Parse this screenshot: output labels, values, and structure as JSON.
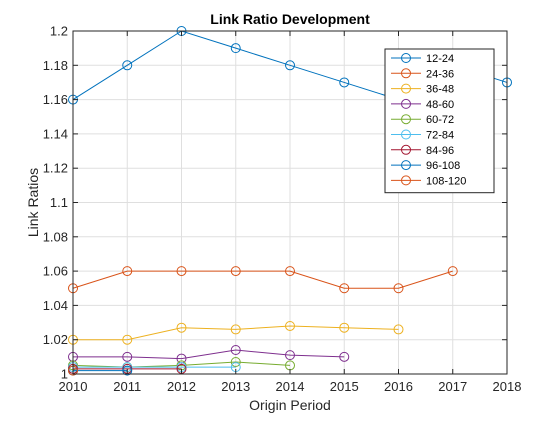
{
  "chart_data": {
    "type": "line",
    "title": "Link Ratio Development",
    "xlabel": "Origin Period",
    "ylabel": "Link Ratios",
    "xlim": [
      2010,
      2018
    ],
    "ylim": [
      1,
      1.2
    ],
    "xticks": [
      "2010",
      "2011",
      "2012",
      "2013",
      "2014",
      "2015",
      "2016",
      "2017",
      "2018"
    ],
    "yticks": [
      "1",
      "1.02",
      "1.04",
      "1.06",
      "1.08",
      "1.1",
      "1.12",
      "1.14",
      "1.16",
      "1.18",
      "1.2"
    ],
    "grid": true,
    "legend_position": "top-right",
    "series": [
      {
        "name": "12-24",
        "color": "#0072bd",
        "x": [
          2010,
          2011,
          2012,
          2013,
          2014,
          2015,
          2016,
          2017,
          2018
        ],
        "y": [
          1.16,
          1.18,
          1.2,
          1.19,
          1.18,
          1.17,
          1.16,
          1.18,
          1.17
        ]
      },
      {
        "name": "24-36",
        "color": "#d95319",
        "x": [
          2010,
          2011,
          2012,
          2013,
          2014,
          2015,
          2016,
          2017
        ],
        "y": [
          1.05,
          1.06,
          1.06,
          1.06,
          1.06,
          1.05,
          1.05,
          1.06
        ]
      },
      {
        "name": "36-48",
        "color": "#edb120",
        "x": [
          2010,
          2011,
          2012,
          2013,
          2014,
          2015,
          2016
        ],
        "y": [
          1.02,
          1.02,
          1.027,
          1.026,
          1.028,
          1.027,
          1.026
        ]
      },
      {
        "name": "48-60",
        "color": "#7e2f8e",
        "x": [
          2010,
          2011,
          2012,
          2013,
          2014,
          2015
        ],
        "y": [
          1.01,
          1.01,
          1.009,
          1.014,
          1.011,
          1.01
        ]
      },
      {
        "name": "60-72",
        "color": "#77ac30",
        "x": [
          2010,
          2011,
          2012,
          2013,
          2014
        ],
        "y": [
          1.005,
          1.004,
          1.005,
          1.007,
          1.005
        ]
      },
      {
        "name": "72-84",
        "color": "#4dbeee",
        "x": [
          2010,
          2011,
          2012,
          2013
        ],
        "y": [
          1.004,
          1.004,
          1.004,
          1.004
        ]
      },
      {
        "name": "84-96",
        "color": "#a2142f",
        "x": [
          2010,
          2011,
          2012
        ],
        "y": [
          1.003,
          1.003,
          1.003
        ]
      },
      {
        "name": "96-108",
        "color": "#0072bd",
        "x": [
          2010,
          2011
        ],
        "y": [
          1.002,
          1.002
        ]
      },
      {
        "name": "108-120",
        "color": "#d95319",
        "x": [
          2010
        ],
        "y": [
          1.002
        ]
      }
    ]
  }
}
